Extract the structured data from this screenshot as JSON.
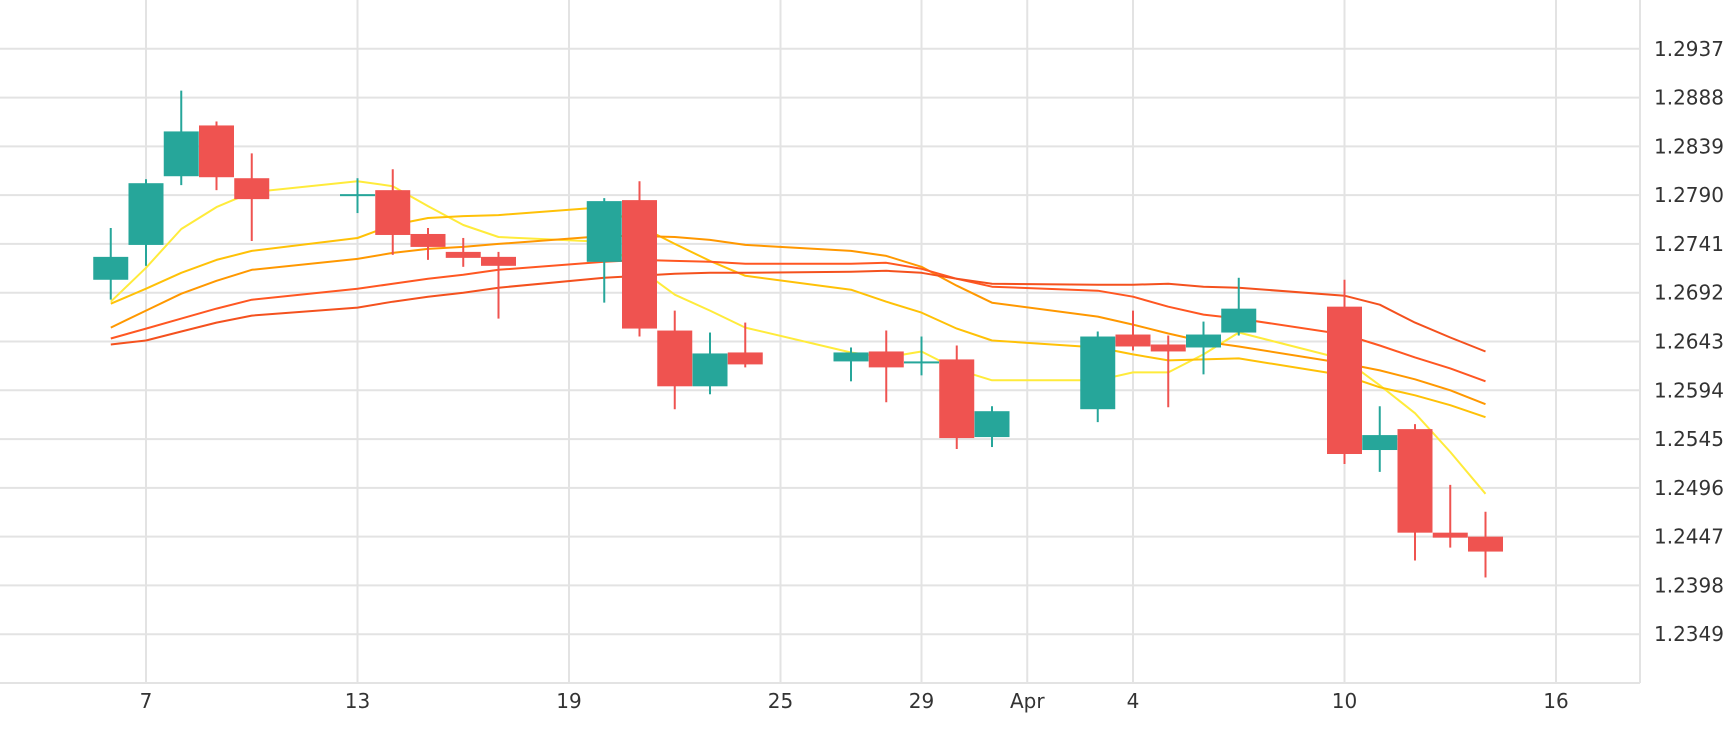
{
  "colors": {
    "background": "#ffffff",
    "grid": "#e3e3e3",
    "candle_up": "#26a69a",
    "candle_down": "#ef5350",
    "text": "#333333"
  },
  "chart_data": {
    "type": "candlestick",
    "title": "",
    "xlabel": "",
    "ylabel": "",
    "grid": true,
    "y_axis_position": "right",
    "ylim": [
      1.23,
      1.2986
    ],
    "x_tick_labels": [
      {
        "label": "7",
        "at": "03-07"
      },
      {
        "label": "13",
        "at": "03-13"
      },
      {
        "label": "19",
        "at": "03-19"
      },
      {
        "label": "25",
        "at": "03-25"
      },
      {
        "label": "29",
        "at": "03-29"
      },
      {
        "label": "Apr",
        "at": "04-01"
      },
      {
        "label": "4",
        "at": "04-04"
      },
      {
        "label": "10",
        "at": "04-10"
      },
      {
        "label": "16",
        "at": "04-16"
      }
    ],
    "y_ticks": [
      "1.2349",
      "1.2398",
      "1.2447",
      "1.2496",
      "1.2545",
      "1.2594",
      "1.2643",
      "1.2692",
      "1.2741",
      "1.2790",
      "1.2839",
      "1.2888",
      "1.2937"
    ],
    "candles": [
      {
        "date": "03-06",
        "open": 1.2705,
        "high": 1.2757,
        "low": 1.2685,
        "close": 1.2728
      },
      {
        "date": "03-07",
        "open": 1.274,
        "high": 1.2806,
        "low": 1.2719,
        "close": 1.2802
      },
      {
        "date": "03-08",
        "open": 1.2809,
        "high": 1.2895,
        "low": 1.28,
        "close": 1.2854
      },
      {
        "date": "03-09",
        "open": 1.286,
        "high": 1.2864,
        "low": 1.2795,
        "close": 1.2808
      },
      {
        "date": "03-10",
        "open": 1.2807,
        "high": 1.2832,
        "low": 1.2744,
        "close": 1.2786
      },
      {
        "date": "03-13",
        "open": 1.2791,
        "high": 1.2807,
        "low": 1.2772,
        "close": 1.2791
      },
      {
        "date": "03-14",
        "open": 1.2795,
        "high": 1.2816,
        "low": 1.273,
        "close": 1.275
      },
      {
        "date": "03-15",
        "open": 1.2751,
        "high": 1.2757,
        "low": 1.2725,
        "close": 1.2738
      },
      {
        "date": "03-16",
        "open": 1.2733,
        "high": 1.2747,
        "low": 1.2718,
        "close": 1.2727
      },
      {
        "date": "03-17",
        "open": 1.2728,
        "high": 1.2733,
        "low": 1.2666,
        "close": 1.2719
      },
      {
        "date": "03-20",
        "open": 1.2723,
        "high": 1.2787,
        "low": 1.2682,
        "close": 1.2784
      },
      {
        "date": "03-21",
        "open": 1.2785,
        "high": 1.2804,
        "low": 1.2648,
        "close": 1.2656
      },
      {
        "date": "03-22",
        "open": 1.2654,
        "high": 1.2674,
        "low": 1.2575,
        "close": 1.2598
      },
      {
        "date": "03-23",
        "open": 1.2598,
        "high": 1.2652,
        "low": 1.259,
        "close": 1.2631
      },
      {
        "date": "03-24",
        "open": 1.2632,
        "high": 1.2662,
        "low": 1.2617,
        "close": 1.262
      },
      {
        "date": "03-27",
        "open": 1.2623,
        "high": 1.2637,
        "low": 1.2603,
        "close": 1.2632
      },
      {
        "date": "03-28",
        "open": 1.2633,
        "high": 1.2654,
        "low": 1.2582,
        "close": 1.2617
      },
      {
        "date": "03-29",
        "open": 1.2623,
        "high": 1.2648,
        "low": 1.2609,
        "close": 1.2623
      },
      {
        "date": "03-30",
        "open": 1.2625,
        "high": 1.2639,
        "low": 1.2535,
        "close": 1.2546
      },
      {
        "date": "03-31",
        "open": 1.2547,
        "high": 1.2578,
        "low": 1.2537,
        "close": 1.2573
      },
      {
        "date": "04-03",
        "open": 1.2575,
        "high": 1.2653,
        "low": 1.2562,
        "close": 1.2648
      },
      {
        "date": "04-04",
        "open": 1.265,
        "high": 1.2674,
        "low": 1.2634,
        "close": 1.2638
      },
      {
        "date": "04-05",
        "open": 1.264,
        "high": 1.2649,
        "low": 1.2577,
        "close": 1.2633
      },
      {
        "date": "04-06",
        "open": 1.2637,
        "high": 1.2663,
        "low": 1.261,
        "close": 1.265
      },
      {
        "date": "04-07",
        "open": 1.2652,
        "high": 1.2707,
        "low": 1.2649,
        "close": 1.2676
      },
      {
        "date": "04-10",
        "open": 1.2678,
        "high": 1.2705,
        "low": 1.252,
        "close": 1.253
      },
      {
        "date": "04-11",
        "open": 1.2534,
        "high": 1.2578,
        "low": 1.2512,
        "close": 1.2549
      },
      {
        "date": "04-12",
        "open": 1.2555,
        "high": 1.256,
        "low": 1.2423,
        "close": 1.2451
      },
      {
        "date": "04-13",
        "open": 1.2451,
        "high": 1.2499,
        "low": 1.2436,
        "close": 1.2446
      },
      {
        "date": "04-14",
        "open": 1.2447,
        "high": 1.2472,
        "low": 1.2406,
        "close": 1.2432
      }
    ],
    "series": [
      {
        "type": "line",
        "color": "#ffeb3b",
        "values": [
          1.2683,
          1.2717,
          1.2756,
          1.2778,
          1.2793,
          1.2804,
          1.2799,
          1.2779,
          1.276,
          1.2748,
          1.2743,
          1.2716,
          1.269,
          1.2674,
          1.2657,
          1.2632,
          1.2627,
          1.2633,
          1.2615,
          1.2604,
          1.2604,
          1.2612,
          1.2612,
          1.263,
          1.2652,
          1.2625,
          1.2599,
          1.2571,
          1.2532,
          1.249
        ]
      },
      {
        "type": "line",
        "color": "#ffc107",
        "values": [
          1.2681,
          1.2696,
          1.2712,
          1.2725,
          1.2734,
          1.2747,
          1.276,
          1.2767,
          1.2769,
          1.277,
          1.2778,
          1.2759,
          1.2741,
          1.2724,
          1.2709,
          1.2695,
          1.2683,
          1.2672,
          1.2656,
          1.2644,
          1.2637,
          1.263,
          1.2624,
          1.2625,
          1.2626,
          1.2609,
          1.2597,
          1.2589,
          1.2579,
          1.2567
        ]
      },
      {
        "type": "line",
        "color": "#ff9800",
        "values": [
          1.2657,
          1.2674,
          1.2691,
          1.2704,
          1.2715,
          1.2726,
          1.2732,
          1.2736,
          1.2738,
          1.2741,
          1.2749,
          1.2749,
          1.2748,
          1.2745,
          1.274,
          1.2734,
          1.2729,
          1.2718,
          1.2699,
          1.2682,
          1.2668,
          1.266,
          1.2651,
          1.2643,
          1.2638,
          1.2621,
          1.2614,
          1.2605,
          1.2594,
          1.258
        ]
      },
      {
        "type": "line",
        "color": "#ff5722",
        "values": [
          1.2646,
          1.2656,
          1.2666,
          1.2676,
          1.2685,
          1.2696,
          1.2701,
          1.2706,
          1.271,
          1.2715,
          1.2723,
          1.2725,
          1.2724,
          1.2723,
          1.2721,
          1.2721,
          1.2722,
          1.2716,
          1.2706,
          1.2698,
          1.2694,
          1.2688,
          1.2678,
          1.267,
          1.2666,
          1.265,
          1.2639,
          1.2627,
          1.2616,
          1.2603
        ]
      },
      {
        "type": "line",
        "color": "#f4511e",
        "values": [
          1.264,
          1.2644,
          1.2653,
          1.2662,
          1.2669,
          1.2677,
          1.2683,
          1.2688,
          1.2692,
          1.2697,
          1.2707,
          1.2709,
          1.2711,
          1.2712,
          1.2712,
          1.2713,
          1.2714,
          1.2712,
          1.2706,
          1.2701,
          1.27,
          1.27,
          1.2701,
          1.2698,
          1.2697,
          1.2689,
          1.268,
          1.2662,
          1.2647,
          1.2633
        ]
      }
    ]
  }
}
